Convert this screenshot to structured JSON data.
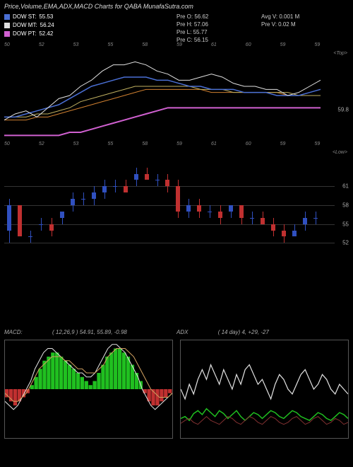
{
  "title": "Price,Volume,EMA,ADX,MACD Charts for QABA MunafaSutra.com",
  "colors": {
    "bg": "#000000",
    "text": "#ffffff",
    "muted": "#aaaaaa",
    "grid": "#333333",
    "st": "#4a6fd4",
    "mt": "#e0e0e0",
    "pt": "#d060d0",
    "ema_orange": "#d08030",
    "ema_yellow": "#c0b060",
    "up": "#3050c0",
    "down": "#c03030",
    "macd_pos": "#20c020",
    "macd_neg": "#c03030",
    "adx_white": "#e0e0e0",
    "adx_green": "#20c020",
    "adx_red": "#803030"
  },
  "legend": {
    "st": {
      "label": "DOW ST:",
      "value": "55.53"
    },
    "mt": {
      "label": "DOW MT:",
      "value": "56.24"
    },
    "pt": {
      "label": "DOW PT:",
      "value": "52.42"
    }
  },
  "info_center": [
    {
      "k": "Pre",
      "v": "O: 56.62"
    },
    {
      "k": "Pre",
      "v": "H: 57.06"
    },
    {
      "k": "Pre",
      "v": "L: 55.77"
    },
    {
      "k": "Pre",
      "v": "C: 56.15"
    }
  ],
  "info_right": [
    {
      "k": "Avg V:",
      "v": "0.001 M"
    },
    {
      "k": "Pre  V:",
      "v": "0.02  M"
    }
  ],
  "ema_panel": {
    "side_label": "<Top>",
    "x_ticks": [
      "50",
      "",
      "52",
      "",
      "53",
      "",
      "55",
      "",
      "58",
      "",
      "59",
      "",
      "61",
      "",
      "60",
      "",
      "59",
      "",
      "59",
      ""
    ],
    "y_end_label": "59.8",
    "lines": {
      "pt": [
        42,
        42,
        42,
        42,
        42,
        42,
        43,
        43,
        44,
        45,
        46,
        47,
        48,
        49,
        50,
        51,
        51,
        51,
        51,
        51,
        51,
        51,
        51,
        51,
        51,
        51,
        51,
        51,
        51,
        51
      ],
      "orange": [
        47,
        47,
        47,
        48,
        48,
        49,
        50,
        51,
        52,
        53,
        54,
        55,
        56,
        57,
        57,
        57,
        57,
        57,
        57,
        56,
        56,
        56,
        56,
        56,
        56,
        56,
        55,
        55,
        55,
        55
      ],
      "yellow": [
        48,
        48,
        48,
        49,
        49,
        50,
        51,
        53,
        54,
        55,
        56,
        57,
        58,
        58,
        58,
        58,
        58,
        58,
        57,
        57,
        57,
        56,
        56,
        56,
        56,
        56,
        56,
        55,
        55,
        55
      ],
      "st": [
        48,
        48,
        49,
        50,
        51,
        52,
        54,
        56,
        58,
        59,
        60,
        61,
        61,
        61,
        60,
        60,
        59,
        58,
        58,
        57,
        57,
        57,
        56,
        56,
        56,
        55,
        55,
        55,
        56,
        57
      ],
      "mt": [
        47,
        49,
        50,
        48,
        51,
        54,
        55,
        58,
        60,
        63,
        65,
        65,
        66,
        65,
        63,
        62,
        60,
        60,
        61,
        62,
        61,
        59,
        58,
        58,
        57,
        57,
        55,
        56,
        58,
        60
      ]
    },
    "yrange": [
      40,
      70
    ]
  },
  "candle_panel": {
    "side_label": "<Low>",
    "x_ticks": [
      "50",
      "",
      "52",
      "",
      "53",
      "",
      "55",
      "",
      "58",
      "",
      "59",
      "",
      "61",
      "",
      "60",
      "",
      "59",
      "",
      "59",
      ""
    ],
    "y_grid": [
      61,
      58,
      55,
      52
    ],
    "yrange": [
      49,
      67
    ],
    "candles": [
      {
        "o": 54,
        "h": 59,
        "l": 52,
        "c": 58
      },
      {
        "o": 58,
        "h": 58,
        "l": 53,
        "c": 53
      },
      {
        "o": 53,
        "h": 54,
        "l": 52,
        "c": 53
      },
      {
        "o": 55,
        "h": 56,
        "l": 54,
        "c": 55
      },
      {
        "o": 55,
        "h": 56,
        "l": 53,
        "c": 54
      },
      {
        "o": 56,
        "h": 57,
        "l": 55,
        "c": 57
      },
      {
        "o": 58,
        "h": 60,
        "l": 57,
        "c": 59
      },
      {
        "o": 59,
        "h": 60,
        "l": 58,
        "c": 59
      },
      {
        "o": 59,
        "h": 61,
        "l": 58,
        "c": 60
      },
      {
        "o": 60,
        "h": 62,
        "l": 59,
        "c": 61
      },
      {
        "o": 61,
        "h": 62,
        "l": 60,
        "c": 61
      },
      {
        "o": 61,
        "h": 62,
        "l": 60,
        "c": 60
      },
      {
        "o": 62,
        "h": 64,
        "l": 61,
        "c": 63
      },
      {
        "o": 63,
        "h": 64,
        "l": 62,
        "c": 62
      },
      {
        "o": 62,
        "h": 63,
        "l": 61,
        "c": 62
      },
      {
        "o": 62,
        "h": 63,
        "l": 60,
        "c": 61
      },
      {
        "o": 61,
        "h": 62,
        "l": 56,
        "c": 57
      },
      {
        "o": 57,
        "h": 59,
        "l": 56,
        "c": 58
      },
      {
        "o": 58,
        "h": 59,
        "l": 56,
        "c": 57
      },
      {
        "o": 57,
        "h": 58,
        "l": 56,
        "c": 57
      },
      {
        "o": 57,
        "h": 58,
        "l": 55,
        "c": 56
      },
      {
        "o": 57,
        "h": 58,
        "l": 56,
        "c": 58
      },
      {
        "o": 58,
        "h": 58,
        "l": 55,
        "c": 56
      },
      {
        "o": 56,
        "h": 57,
        "l": 55,
        "c": 56
      },
      {
        "o": 56,
        "h": 57,
        "l": 55,
        "c": 55
      },
      {
        "o": 55,
        "h": 56,
        "l": 53,
        "c": 54
      },
      {
        "o": 54,
        "h": 55,
        "l": 52,
        "c": 53
      },
      {
        "o": 53,
        "h": 55,
        "l": 53,
        "c": 54
      },
      {
        "o": 55,
        "h": 57,
        "l": 54,
        "c": 56
      },
      {
        "o": 56,
        "h": 57,
        "l": 55,
        "c": 56
      }
    ]
  },
  "macd": {
    "label": "MACD:",
    "params": "( 12,26,9 ) 54.91,  55.89,  -0.98",
    "hist": [
      -2,
      -3,
      -4,
      -3,
      -2,
      -1,
      1,
      3,
      5,
      7,
      8,
      9,
      9,
      8,
      7,
      6,
      5,
      4,
      3,
      2,
      1,
      2,
      4,
      6,
      8,
      9,
      10,
      10,
      9,
      8,
      6,
      4,
      2,
      -1,
      -3,
      -4,
      -4,
      -3,
      -2,
      -1
    ],
    "line1": [
      -3,
      -4,
      -5,
      -4,
      -2,
      0,
      2,
      5,
      7,
      9,
      10,
      10,
      9,
      8,
      7,
      6,
      5,
      4,
      4,
      3,
      3,
      4,
      6,
      8,
      10,
      11,
      11,
      10,
      9,
      7,
      5,
      3,
      0,
      -2,
      -4,
      -5,
      -4,
      -3,
      -2,
      -1
    ],
    "line2": [
      -1,
      -2,
      -3,
      -3,
      -2,
      -1,
      1,
      3,
      5,
      6,
      7,
      8,
      8,
      8,
      7,
      7,
      6,
      5,
      5,
      4,
      4,
      4,
      5,
      6,
      8,
      9,
      10,
      10,
      10,
      9,
      8,
      6,
      4,
      2,
      0,
      -1,
      -2,
      -2,
      -2,
      -1
    ],
    "yrange": [
      -12,
      12
    ]
  },
  "adx": {
    "label": "ADX",
    "params": "( 14   day) 4,  +29, -27",
    "adx_line": [
      50,
      40,
      55,
      45,
      60,
      70,
      60,
      75,
      65,
      55,
      70,
      60,
      50,
      65,
      55,
      70,
      75,
      65,
      55,
      60,
      50,
      40,
      55,
      65,
      60,
      50,
      45,
      55,
      65,
      70,
      60,
      50,
      55,
      65,
      60,
      50,
      45,
      55,
      50,
      45
    ],
    "plus_line": [
      20,
      22,
      18,
      25,
      28,
      24,
      30,
      26,
      22,
      28,
      25,
      20,
      24,
      28,
      22,
      18,
      22,
      26,
      24,
      20,
      24,
      28,
      26,
      22,
      20,
      24,
      28,
      26,
      22,
      20,
      18,
      22,
      26,
      24,
      20,
      18,
      22,
      26,
      24,
      20
    ],
    "minus_line": [
      15,
      18,
      20,
      16,
      14,
      18,
      22,
      18,
      16,
      14,
      18,
      22,
      20,
      16,
      14,
      18,
      22,
      20,
      16,
      14,
      18,
      22,
      20,
      16,
      14,
      16,
      20,
      22,
      18,
      14,
      16,
      20,
      22,
      18,
      14,
      16,
      20,
      18,
      14,
      16
    ],
    "yrange": [
      0,
      100
    ]
  }
}
